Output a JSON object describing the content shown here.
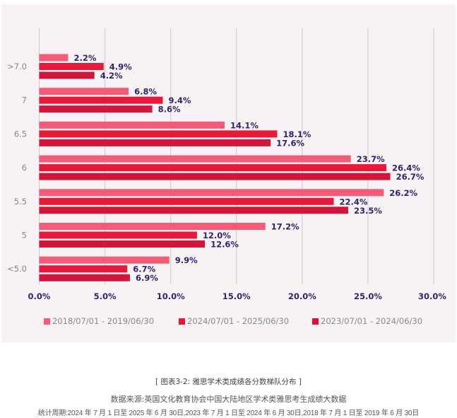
{
  "chart_data": {
    "type": "bar",
    "orientation": "horizontal",
    "categories": [
      ">7.0",
      "7",
      "6.5",
      "6",
      "5.5",
      "5",
      "<5.0"
    ],
    "series": [
      {
        "name": "2018/07/01 - 2019/06/30",
        "color": "#f45b78",
        "values": [
          2.2,
          6.8,
          14.1,
          23.7,
          26.2,
          17.2,
          9.9
        ]
      },
      {
        "name": "2024/07/01 - 2025/06/30",
        "color": "#e5193a",
        "values": [
          4.9,
          9.4,
          18.1,
          26.4,
          22.4,
          12.0,
          6.7
        ]
      },
      {
        "name": "2023/07/01 - 2024/06/30",
        "color": "#d0163a",
        "values": [
          4.2,
          8.6,
          17.6,
          26.7,
          23.5,
          12.6,
          6.9
        ]
      }
    ],
    "xlim": [
      0,
      30
    ],
    "xticks": [
      "0.0%",
      "5.0%",
      "10.0%",
      "15.0%",
      "20.0%",
      "25.0%",
      "30.0%"
    ],
    "grid": true,
    "legend_position": "bottom",
    "label_color": "#2f2567"
  },
  "caption": {
    "title": "[ 图表3-2:  雅思学术类成绩各分数梯队分布 ]",
    "source": "数据来源:英国文化教育协会中国大陆地区学术类雅思考生成绩大数据",
    "period": "统计周期:2024 年 7 月 1 日至 2025 年 6 月 30日,2023 年 7 月 1 日至 2024 年 6 月 30日,2018 年 7 月 1 日至 2019 年 6 月 30日"
  }
}
